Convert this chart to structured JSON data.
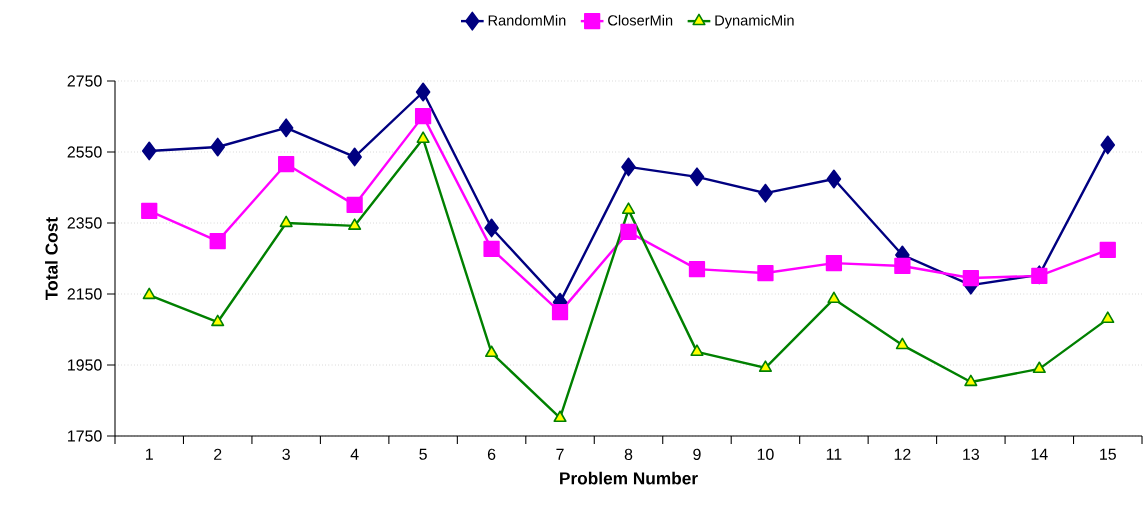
{
  "chart_data": {
    "type": "line",
    "xlabel": "Problem Number",
    "ylabel": "Total Cost",
    "categories": [
      "1",
      "2",
      "3",
      "4",
      "5",
      "6",
      "7",
      "8",
      "9",
      "10",
      "11",
      "12",
      "13",
      "14",
      "15"
    ],
    "series": [
      {
        "name": "RandomMin",
        "color": "#000080",
        "marker": "diamond",
        "values": [
          2553,
          2564,
          2618,
          2536,
          2719,
          2336,
          2127,
          2508,
          2480,
          2434,
          2474,
          2260,
          2175,
          2204,
          2570
        ]
      },
      {
        "name": "CloserMin",
        "color": "#ff00ff",
        "marker": "square",
        "values": [
          2384,
          2299,
          2516,
          2401,
          2651,
          2277,
          2099,
          2325,
          2220,
          2209,
          2237,
          2229,
          2195,
          2201,
          2274
        ]
      },
      {
        "name": "DynamicMin",
        "color": "#008000",
        "marker": "triangle",
        "values": [
          2147,
          2071,
          2350,
          2342,
          2587,
          1984,
          1801,
          2387,
          1987,
          1942,
          2136,
          2006,
          1902,
          1939,
          2080
        ]
      }
    ],
    "ylim": [
      1750,
      2750
    ],
    "yticks": [
      1750,
      1950,
      2150,
      2350,
      2550,
      2750
    ],
    "grid": "y",
    "legend": "top",
    "line_style": "solid"
  }
}
